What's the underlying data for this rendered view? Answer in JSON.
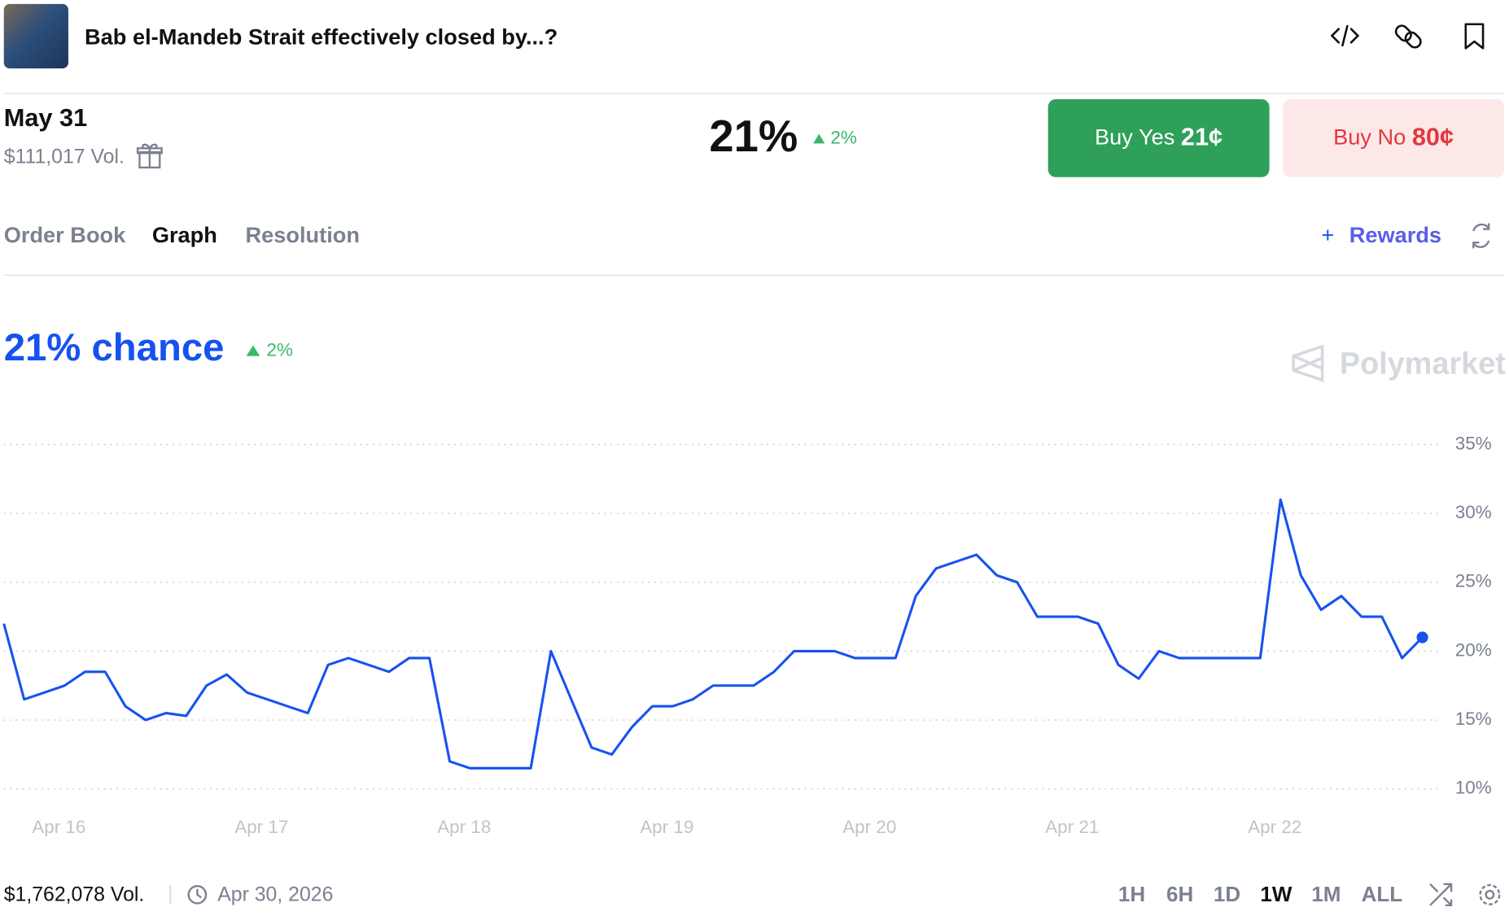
{
  "header": {
    "title": "Bab el-Mandeb Strait effectively closed by...?"
  },
  "market": {
    "date": "May 31",
    "volume": "$111,017 Vol.",
    "price": "21%",
    "change": "2%",
    "buy_yes": {
      "label": "Buy Yes",
      "price": "21¢"
    },
    "buy_no": {
      "label": "Buy No",
      "price": "80¢"
    }
  },
  "tabs": [
    "Order Book",
    "Graph",
    "Resolution"
  ],
  "rewards": "Rewards",
  "chart_header": {
    "chance": "21% chance",
    "change": "2%",
    "watermark": "Polymarket"
  },
  "chart_data": {
    "type": "line",
    "categories": [
      null,
      null,
      null,
      "Apr 16",
      null,
      null,
      null,
      null,
      null,
      null,
      null,
      null,
      null,
      "Apr 17",
      null,
      null,
      null,
      null,
      null,
      null,
      null,
      null,
      null,
      "Apr 18",
      null,
      null,
      null,
      null,
      null,
      null,
      null,
      null,
      null,
      "Apr 19",
      null,
      null,
      null,
      null,
      null,
      null,
      null,
      null,
      null,
      "Apr 20",
      null,
      null,
      null,
      null,
      null,
      null,
      null,
      null,
      null,
      "Apr 21",
      null,
      null,
      null,
      null,
      null,
      null,
      null,
      null,
      null,
      "Apr 22",
      null,
      null,
      null,
      null,
      null,
      null,
      null
    ],
    "values": [
      22,
      16.5,
      17,
      17.5,
      18.5,
      18.5,
      16,
      15,
      15.5,
      15.3,
      17.5,
      18.3,
      17,
      16.5,
      16,
      15.5,
      19,
      19.5,
      19,
      18.5,
      19.5,
      19.5,
      12,
      11.5,
      11.5,
      11.5,
      11.5,
      20,
      16.5,
      13,
      12.5,
      14.5,
      16,
      16,
      16.5,
      17.5,
      17.5,
      17.5,
      18.5,
      20,
      20,
      20,
      19.5,
      19.5,
      19.5,
      24,
      26,
      26.5,
      27,
      25.5,
      25,
      22.5,
      22.5,
      22.5,
      22,
      19,
      18,
      20,
      19.5,
      19.5,
      19.5,
      19.5,
      19.5,
      31,
      25.5,
      23,
      24,
      22.5,
      22.5,
      19.5,
      21
    ],
    "color": "#1652f0",
    "ylim": [
      10,
      35
    ],
    "yticks": [
      {
        "value": 10,
        "label": "10%"
      },
      {
        "value": 15,
        "label": "15%"
      },
      {
        "value": 20,
        "label": "20%"
      },
      {
        "value": 25,
        "label": "25%"
      },
      {
        "value": 30,
        "label": "30%"
      },
      {
        "value": 35,
        "label": "35%"
      }
    ],
    "grid": true
  },
  "footer": {
    "volume": "$1,762,078 Vol.",
    "end_date": "Apr 30, 2026",
    "ranges": [
      "1H",
      "6H",
      "1D",
      "1W",
      "1M",
      "ALL"
    ],
    "active_range": 3
  }
}
